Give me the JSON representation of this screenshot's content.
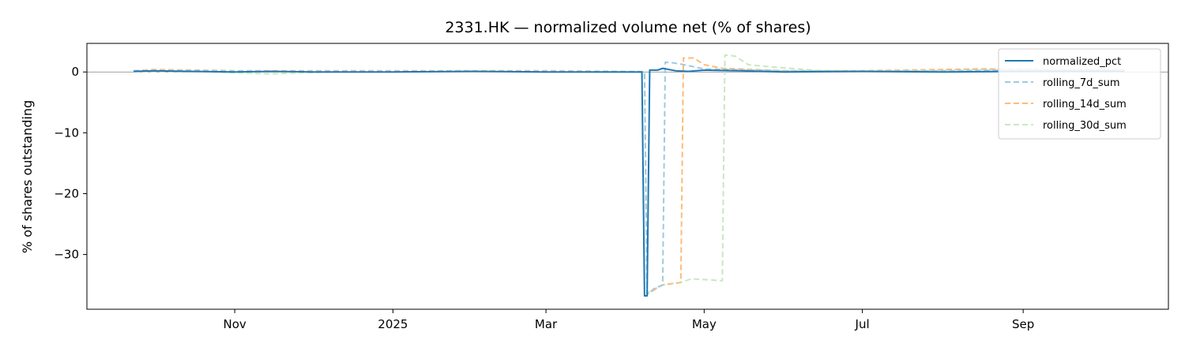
{
  "chart_data": {
    "type": "line",
    "title": "2331.HK — normalized volume net (% of shares)",
    "xlabel": "",
    "ylabel": "% of shares outstanding",
    "x_range": [
      "2024-09-05",
      "2025-10-27"
    ],
    "ylim": [
      -39,
      4.7
    ],
    "yticks": [
      0,
      -10,
      -20,
      -30
    ],
    "xticks": [
      {
        "date": "2024-11-01",
        "label": "Nov"
      },
      {
        "date": "2025-01-01",
        "label": "2025"
      },
      {
        "date": "2025-03-01",
        "label": "Mar"
      },
      {
        "date": "2025-05-01",
        "label": "May"
      },
      {
        "date": "2025-07-01",
        "label": "Jul"
      },
      {
        "date": "2025-09-01",
        "label": "Sep"
      }
    ],
    "grid": false,
    "zero_line": true,
    "legend_position": "top-right",
    "series": [
      {
        "name": "normalized_pct",
        "color": "#1f77b4",
        "style": "solid",
        "points": [
          [
            "2024-09-23",
            0.1
          ],
          [
            "2024-10-01",
            0.2
          ],
          [
            "2024-10-15",
            0.1
          ],
          [
            "2024-11-01",
            0.0
          ],
          [
            "2024-11-15",
            0.1
          ],
          [
            "2024-12-01",
            0.0
          ],
          [
            "2025-01-01",
            0.0
          ],
          [
            "2025-02-01",
            0.1
          ],
          [
            "2025-03-01",
            0.0
          ],
          [
            "2025-04-01",
            0.0
          ],
          [
            "2025-04-07",
            0.0
          ],
          [
            "2025-04-08",
            -36.8
          ],
          [
            "2025-04-09",
            -36.8
          ],
          [
            "2025-04-10",
            0.3
          ],
          [
            "2025-04-13",
            0.3
          ],
          [
            "2025-04-15",
            0.6
          ],
          [
            "2025-04-20",
            0.2
          ],
          [
            "2025-04-25",
            0.1
          ],
          [
            "2025-05-01",
            0.3
          ],
          [
            "2025-05-15",
            0.2
          ],
          [
            "2025-06-01",
            0.0
          ],
          [
            "2025-07-01",
            0.1
          ],
          [
            "2025-08-01",
            0.0
          ],
          [
            "2025-09-01",
            0.1
          ],
          [
            "2025-10-10",
            0.1
          ]
        ]
      },
      {
        "name": "rolling_7d_sum",
        "color": "#9ecae1",
        "style": "dashed",
        "points": [
          [
            "2024-09-23",
            0.2
          ],
          [
            "2024-10-15",
            0.2
          ],
          [
            "2024-11-15",
            0.1
          ],
          [
            "2025-01-01",
            0.1
          ],
          [
            "2025-03-01",
            0.1
          ],
          [
            "2025-04-08",
            0.0
          ],
          [
            "2025-04-09",
            -36.6
          ],
          [
            "2025-04-12",
            -35.5
          ],
          [
            "2025-04-14",
            -35.2
          ],
          [
            "2025-04-15",
            -35.0
          ],
          [
            "2025-04-16",
            1.6
          ],
          [
            "2025-04-19",
            1.5
          ],
          [
            "2025-04-22",
            1.3
          ],
          [
            "2025-05-01",
            0.5
          ],
          [
            "2025-06-01",
            0.2
          ],
          [
            "2025-07-01",
            0.1
          ],
          [
            "2025-08-01",
            0.2
          ],
          [
            "2025-09-01",
            0.3
          ],
          [
            "2025-10-10",
            0.4
          ]
        ]
      },
      {
        "name": "rolling_14d_sum",
        "color": "#ffbb78",
        "style": "dashed",
        "points": [
          [
            "2024-09-23",
            0.2
          ],
          [
            "2024-10-01",
            0.4
          ],
          [
            "2024-11-01",
            0.2
          ],
          [
            "2025-01-01",
            0.2
          ],
          [
            "2025-03-01",
            0.2
          ],
          [
            "2025-04-08",
            0.0
          ],
          [
            "2025-04-09",
            -36.5
          ],
          [
            "2025-04-15",
            -35.0
          ],
          [
            "2025-04-22",
            -34.6
          ],
          [
            "2025-04-23",
            2.3
          ],
          [
            "2025-04-27",
            2.3
          ],
          [
            "2025-05-01",
            1.2
          ],
          [
            "2025-05-08",
            0.6
          ],
          [
            "2025-06-01",
            0.2
          ],
          [
            "2025-07-01",
            0.2
          ],
          [
            "2025-08-15",
            0.5
          ],
          [
            "2025-10-10",
            0.4
          ]
        ]
      },
      {
        "name": "rolling_30d_sum",
        "color": "#c7e9c0",
        "style": "dashed",
        "points": [
          [
            "2024-09-23",
            0.1
          ],
          [
            "2024-10-15",
            0.1
          ],
          [
            "2024-11-15",
            -0.3
          ],
          [
            "2024-12-15",
            0.1
          ],
          [
            "2025-01-15",
            0.1
          ],
          [
            "2025-03-01",
            0.2
          ],
          [
            "2025-04-08",
            0.1
          ],
          [
            "2025-04-09",
            -36.3
          ],
          [
            "2025-04-15",
            -35.0
          ],
          [
            "2025-04-22",
            -34.6
          ],
          [
            "2025-04-26",
            -34.0
          ],
          [
            "2025-05-08",
            -34.3
          ],
          [
            "2025-05-09",
            2.8
          ],
          [
            "2025-05-13",
            2.6
          ],
          [
            "2025-05-18",
            1.2
          ],
          [
            "2025-05-25",
            0.9
          ],
          [
            "2025-06-15",
            0.2
          ],
          [
            "2025-07-15",
            0.1
          ],
          [
            "2025-08-15",
            0.4
          ],
          [
            "2025-09-15",
            0.3
          ],
          [
            "2025-10-10",
            0.3
          ]
        ]
      }
    ]
  }
}
